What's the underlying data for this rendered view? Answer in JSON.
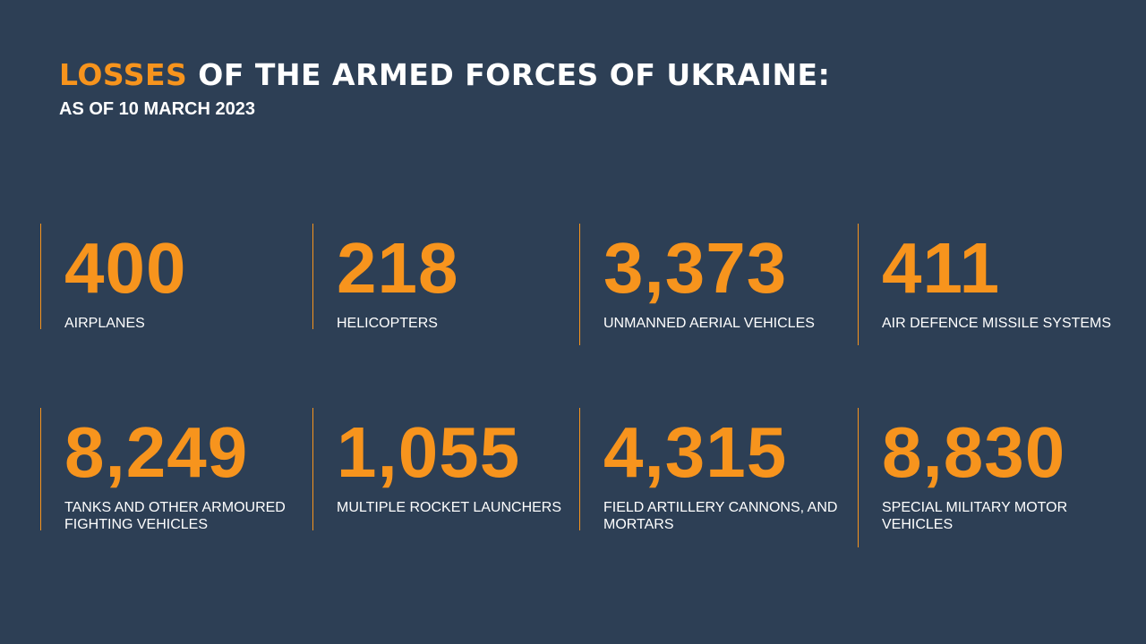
{
  "header": {
    "title_highlight": "LOSSES",
    "title_rest": "OF THE ARMED FORCES OF UKRAINE:",
    "subtitle": "AS OF 10 MARCH 2023"
  },
  "stats": [
    {
      "value": "400",
      "label": "AIRPLANES"
    },
    {
      "value": "218",
      "label": "HELICOPTERS"
    },
    {
      "value": "3,373",
      "label": "UNMANNED AERIAL VEHICLES"
    },
    {
      "value": "411",
      "label": "AIR DEFENCE MISSILE SYSTEMS"
    },
    {
      "value": "8,249",
      "label": "TANKS AND OTHER ARMOURED FIGHTING VEHICLES"
    },
    {
      "value": "1,055",
      "label": "MULTIPLE ROCKET LAUNCHERS"
    },
    {
      "value": "4,315",
      "label": "FIELD ARTILLERY CANNONS, AND MORTARS"
    },
    {
      "value": "8,830",
      "label": "SPECIAL MILITARY MOTOR VEHICLES"
    }
  ]
}
